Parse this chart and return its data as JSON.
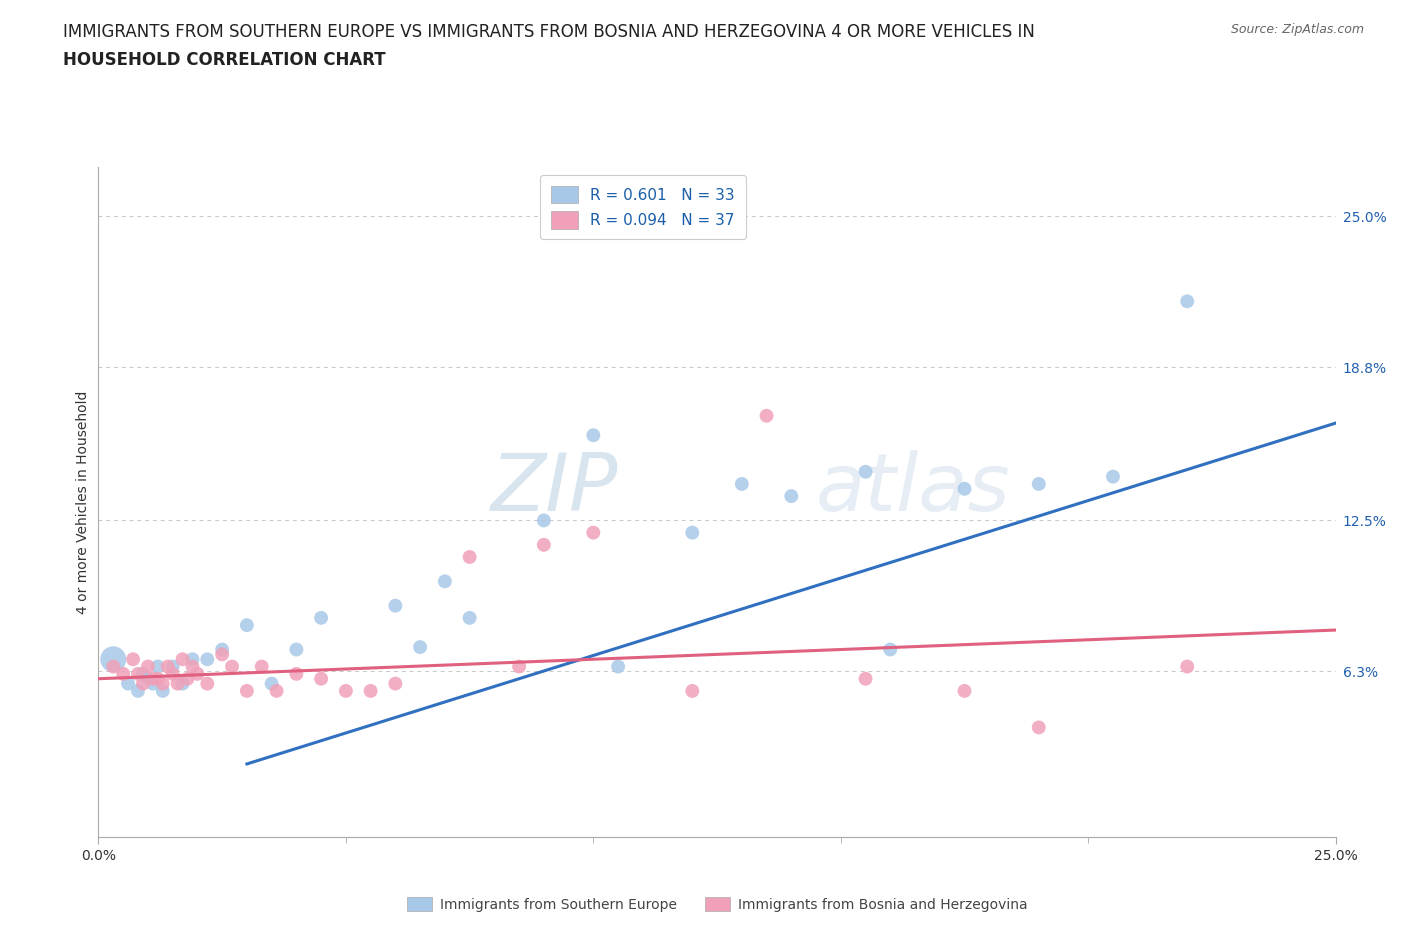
{
  "title_line1": "IMMIGRANTS FROM SOUTHERN EUROPE VS IMMIGRANTS FROM BOSNIA AND HERZEGOVINA 4 OR MORE VEHICLES IN",
  "title_line2": "HOUSEHOLD CORRELATION CHART",
  "source_text": "Source: ZipAtlas.com",
  "ylabel": "4 or more Vehicles in Household",
  "xlim": [
    0.0,
    0.25
  ],
  "ylim": [
    -0.005,
    0.27
  ],
  "xtick_vals": [
    0.0,
    0.25
  ],
  "xtick_labels": [
    "0.0%",
    "25.0%"
  ],
  "ytick_positions": [
    0.063,
    0.125,
    0.188,
    0.25
  ],
  "ytick_labels": [
    "6.3%",
    "12.5%",
    "18.8%",
    "25.0%"
  ],
  "blue_color": "#a8c8e8",
  "pink_color": "#f0a0b8",
  "blue_line_color": "#3070c0",
  "pink_line_color": "#e06080",
  "watermark_color": "#d0dce8",
  "grid_color": "#c8c8c8",
  "bg_color": "#ffffff",
  "title_fontsize": 12,
  "source_fontsize": 9,
  "axis_label_fontsize": 10,
  "tick_fontsize": 10,
  "legend_R1": "R = 0.601",
  "legend_N1": "N = 33",
  "legend_R2": "R = 0.094",
  "legend_N2": "N = 37",
  "legend_label1": "Immigrants from Southern Europe",
  "legend_label2": "Immigrants from Bosnia and Herzegovina",
  "blue_x": [
    0.003,
    0.006,
    0.008,
    0.009,
    0.01,
    0.011,
    0.012,
    0.013,
    0.015,
    0.017,
    0.019,
    0.022,
    0.025,
    0.03,
    0.035,
    0.04,
    0.045,
    0.06,
    0.065,
    0.07,
    0.075,
    0.09,
    0.1,
    0.105,
    0.12,
    0.13,
    0.14,
    0.155,
    0.16,
    0.175,
    0.19,
    0.205,
    0.22
  ],
  "blue_y": [
    0.068,
    0.058,
    0.055,
    0.062,
    0.06,
    0.058,
    0.065,
    0.055,
    0.065,
    0.058,
    0.068,
    0.068,
    0.072,
    0.082,
    0.058,
    0.072,
    0.085,
    0.09,
    0.073,
    0.1,
    0.085,
    0.125,
    0.16,
    0.065,
    0.12,
    0.14,
    0.135,
    0.145,
    0.072,
    0.138,
    0.14,
    0.143,
    0.215
  ],
  "blue_sizes": [
    350,
    100,
    100,
    100,
    100,
    100,
    100,
    100,
    100,
    100,
    100,
    100,
    100,
    100,
    100,
    100,
    100,
    100,
    100,
    100,
    100,
    100,
    100,
    100,
    100,
    100,
    100,
    100,
    100,
    100,
    100,
    100,
    100
  ],
  "pink_x": [
    0.003,
    0.005,
    0.007,
    0.008,
    0.009,
    0.01,
    0.011,
    0.012,
    0.013,
    0.014,
    0.015,
    0.016,
    0.017,
    0.018,
    0.019,
    0.02,
    0.022,
    0.025,
    0.027,
    0.03,
    0.033,
    0.036,
    0.04,
    0.045,
    0.05,
    0.055,
    0.06,
    0.075,
    0.085,
    0.09,
    0.1,
    0.12,
    0.135,
    0.155,
    0.175,
    0.19,
    0.22
  ],
  "pink_y": [
    0.065,
    0.062,
    0.068,
    0.062,
    0.058,
    0.065,
    0.06,
    0.06,
    0.058,
    0.065,
    0.062,
    0.058,
    0.068,
    0.06,
    0.065,
    0.062,
    0.058,
    0.07,
    0.065,
    0.055,
    0.065,
    0.055,
    0.062,
    0.06,
    0.055,
    0.055,
    0.058,
    0.11,
    0.065,
    0.115,
    0.12,
    0.055,
    0.168,
    0.06,
    0.055,
    0.04,
    0.065
  ],
  "pink_sizes": [
    100,
    100,
    100,
    100,
    100,
    100,
    100,
    100,
    100,
    100,
    100,
    100,
    100,
    100,
    100,
    100,
    100,
    100,
    100,
    100,
    100,
    100,
    100,
    100,
    100,
    100,
    100,
    100,
    100,
    100,
    100,
    100,
    100,
    100,
    100,
    100,
    100
  ],
  "blue_trend": [
    0.03,
    0.25
  ],
  "blue_trend_y": [
    0.025,
    0.165
  ],
  "pink_trend": [
    0.0,
    0.25
  ],
  "pink_trend_y": [
    0.06,
    0.08
  ]
}
